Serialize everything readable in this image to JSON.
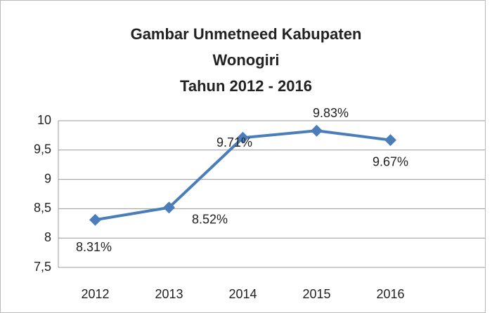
{
  "chart_data": {
    "type": "line",
    "title": [
      "Gambar Unmetneed Kabupaten",
      "Wonogiri",
      "Tahun 2012 - 2016"
    ],
    "categories": [
      "2012",
      "2013",
      "2014",
      "2015",
      "2016"
    ],
    "series": [
      {
        "name": "Unmetneed",
        "color": "#4a7ebb",
        "values": [
          8.31,
          8.52,
          9.71,
          9.83,
          9.67
        ],
        "value_labels": [
          "8.31%",
          "8.52%",
          "9.71%",
          "9.83%",
          "9.67%"
        ]
      }
    ],
    "ylim": [
      7.5,
      10
    ],
    "yticks": [
      {
        "value": 7.5,
        "label": "7,5"
      },
      8,
      {
        "value": 8.5,
        "label": "8,5"
      },
      9,
      {
        "value": 9.5,
        "label": "9,5"
      },
      10
    ],
    "grid": true
  }
}
